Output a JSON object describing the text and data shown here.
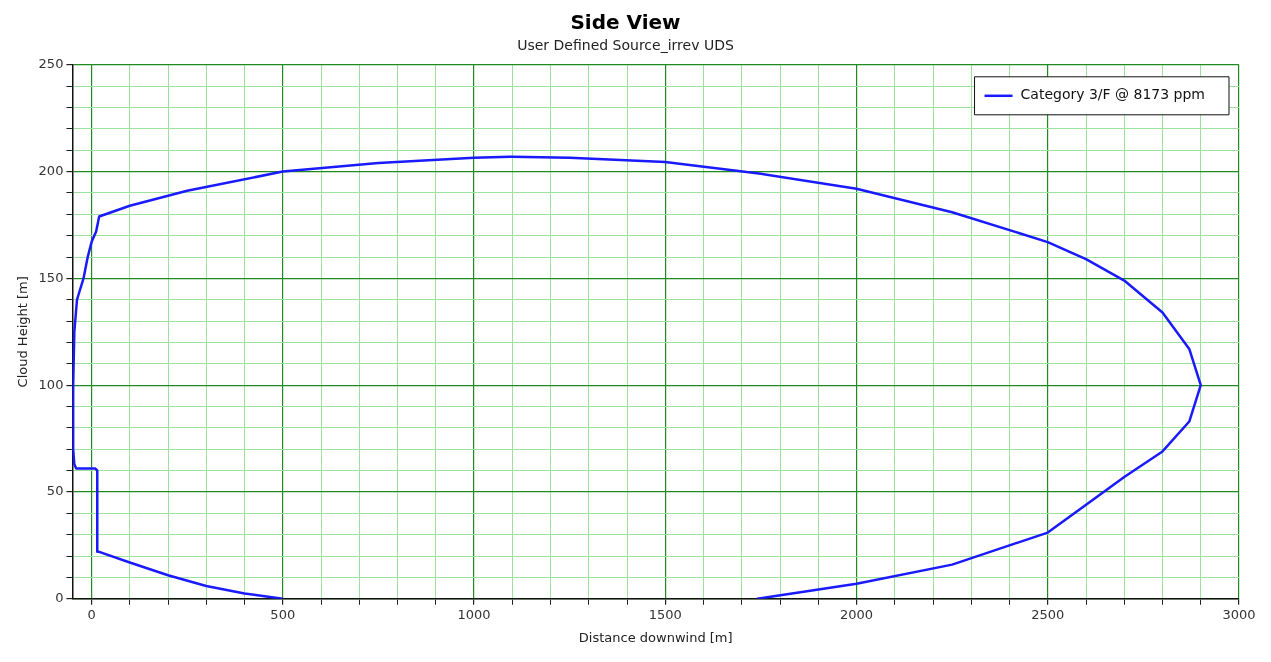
{
  "chart_data": {
    "type": "line",
    "title": "Side View",
    "subtitle": "User Defined Source_irrev UDS",
    "xlabel": "Distance downwind [m]",
    "ylabel": "Cloud Height [m]",
    "xlim": [
      -50,
      3000
    ],
    "xticks": [
      {
        "value": 0,
        "label": "0"
      },
      {
        "value": 100,
        "label": null
      },
      {
        "value": 200,
        "label": null
      },
      {
        "value": 300,
        "label": null
      },
      {
        "value": 400,
        "label": null
      },
      500,
      {
        "value": 600,
        "label": null
      },
      {
        "value": 700,
        "label": null
      },
      {
        "value": 800,
        "label": null
      },
      {
        "value": 900,
        "label": null
      },
      1000,
      {
        "value": 1100,
        "label": null
      },
      {
        "value": 1200,
        "label": null
      },
      {
        "value": 1300,
        "label": null
      },
      {
        "value": 1400,
        "label": null
      },
      1500,
      {
        "value": 1600,
        "label": null
      },
      {
        "value": 1700,
        "label": null
      },
      {
        "value": 1800,
        "label": null
      },
      {
        "value": 1900,
        "label": null
      },
      2000,
      {
        "value": 2100,
        "label": null
      },
      {
        "value": 2200,
        "label": null
      },
      {
        "value": 2300,
        "label": null
      },
      {
        "value": 2400,
        "label": null
      },
      2500,
      {
        "value": 2600,
        "label": null
      },
      {
        "value": 2700,
        "label": null
      },
      {
        "value": 2800,
        "label": null
      },
      {
        "value": 2900,
        "label": null
      },
      3000
    ],
    "ylim": [
      0,
      250
    ],
    "yticks": [
      0,
      {
        "value": 10,
        "label": null
      },
      {
        "value": 20,
        "label": null
      },
      {
        "value": 30,
        "label": null
      },
      {
        "value": 40,
        "label": null
      },
      50,
      {
        "value": 60,
        "label": null
      },
      {
        "value": 70,
        "label": null
      },
      {
        "value": 80,
        "label": null
      },
      {
        "value": 90,
        "label": null
      },
      100,
      {
        "value": 110,
        "label": null
      },
      {
        "value": 120,
        "label": null
      },
      {
        "value": 130,
        "label": null
      },
      {
        "value": 140,
        "label": null
      },
      150,
      {
        "value": 160,
        "label": null
      },
      {
        "value": 170,
        "label": null
      },
      {
        "value": 180,
        "label": null
      },
      {
        "value": 190,
        "label": null
      },
      200,
      {
        "value": 210,
        "label": null
      },
      {
        "value": 220,
        "label": null
      },
      {
        "value": 230,
        "label": null
      },
      {
        "value": 240,
        "label": null
      },
      250
    ],
    "grid": true,
    "legend": "top right",
    "marker": "none",
    "line_style": "solid",
    "series": [
      {
        "name": "Category 3/F @ 8173 ppm",
        "color": "#1a1aff",
        "x": [
          500,
          400,
          300,
          200,
          100,
          20,
          15,
          15,
          10,
          -40,
          -45,
          -48,
          -48,
          -45,
          -38,
          -21,
          -10,
          0,
          12,
          20,
          100,
          250,
          500,
          750,
          1000,
          1100,
          1250,
          1500,
          1750,
          2000,
          2250,
          2500,
          2600,
          2700,
          2800,
          2870,
          2900,
          2870,
          2800,
          2700,
          2500,
          2250,
          2000,
          1740
        ],
        "values": [
          0,
          2.5,
          6,
          11,
          17,
          22,
          22,
          60,
          61,
          61,
          63,
          70,
          100,
          125,
          140,
          150,
          160,
          167,
          172,
          179,
          184,
          191,
          200,
          204,
          206.5,
          207,
          206.5,
          204.5,
          199,
          192,
          181,
          167,
          159,
          149,
          134,
          117,
          100,
          83,
          69,
          57,
          31,
          16,
          7,
          0
        ]
      }
    ]
  }
}
